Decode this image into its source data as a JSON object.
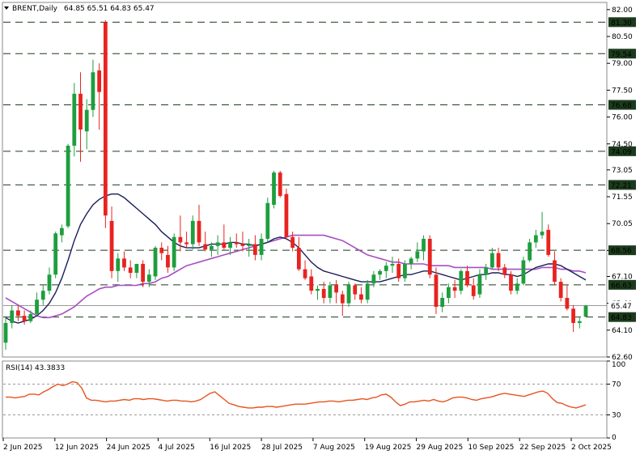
{
  "header": {
    "symbol": "BRENT,Daily",
    "ohlc": "64.85 65.51 64.83 65.47"
  },
  "indicator": {
    "label": "RSI(14) 43.3833"
  },
  "chart_data": [
    {
      "type": "candlestick",
      "title": "BRENT,Daily",
      "ylim": [
        62.6,
        82.4
      ],
      "y_ticks": [
        "82.00",
        "80.50",
        "79.00",
        "77.50",
        "76.00",
        "74.50",
        "73.05",
        "71.55",
        "70.05",
        "68.55",
        "67.10",
        "65.60",
        "64.10",
        "62.60"
      ],
      "x_ticks": [
        "2 Jun 2025",
        "12 Jun 2025",
        "24 Jun 2025",
        "4 Jul 2025",
        "16 Jul 2025",
        "28 Jul 2025",
        "7 Aug 2025",
        "19 Aug 2025",
        "29 Aug 2025",
        "10 Sep 2025",
        "22 Sep 2025",
        "2 Oct 2025"
      ],
      "levels": [
        {
          "value": 81.3,
          "label": "81.30"
        },
        {
          "value": 79.54,
          "label": "79.54"
        },
        {
          "value": 76.68,
          "label": "76.68"
        },
        {
          "value": 74.09,
          "label": "74.09"
        },
        {
          "value": 72.21,
          "label": "72.21"
        },
        {
          "value": 68.56,
          "label": "68.56"
        },
        {
          "value": 66.63,
          "label": "66.63"
        },
        {
          "value": 64.83,
          "label": "64.83"
        }
      ],
      "current_price": {
        "value": 65.47,
        "label": "65.47"
      },
      "colors": {
        "up": "#1e9e3e",
        "down": "#e8231f",
        "ma_fast": "#1a1f5a",
        "ma_slow": "#a64fc2",
        "level": "#1e3a1e"
      },
      "candles": [
        [
          63.4,
          64.8,
          63.0,
          64.5
        ],
        [
          64.5,
          65.5,
          64.2,
          65.2
        ],
        [
          65.2,
          65.5,
          64.6,
          64.9
        ],
        [
          64.9,
          65.2,
          64.4,
          64.6
        ],
        [
          64.6,
          65.2,
          64.5,
          65.0
        ],
        [
          65.0,
          66.2,
          64.9,
          65.8
        ],
        [
          65.8,
          66.6,
          65.5,
          66.3
        ],
        [
          66.3,
          67.6,
          66.1,
          67.2
        ],
        [
          67.2,
          69.6,
          67.0,
          69.5
        ],
        [
          69.4,
          70.0,
          69.0,
          69.8
        ],
        [
          69.9,
          74.5,
          69.8,
          74.4
        ],
        [
          74.4,
          77.9,
          73.8,
          77.3
        ],
        [
          77.3,
          78.5,
          73.5,
          75.3
        ],
        [
          75.2,
          77.0,
          74.2,
          76.4
        ],
        [
          76.4,
          79.2,
          76.0,
          78.5
        ],
        [
          78.6,
          79.0,
          75.3,
          77.4
        ],
        [
          81.3,
          81.4,
          69.8,
          70.5
        ],
        [
          70.2,
          71.0,
          67.0,
          67.4
        ],
        [
          67.4,
          68.4,
          66.8,
          68.1
        ],
        [
          68.1,
          68.5,
          67.4,
          67.6
        ],
        [
          67.6,
          68.0,
          67.0,
          67.3
        ],
        [
          67.3,
          67.8,
          67.0,
          67.8
        ],
        [
          67.8,
          68.0,
          66.5,
          66.8
        ],
        [
          66.8,
          67.5,
          66.5,
          67.2
        ],
        [
          67.1,
          68.8,
          66.9,
          68.7
        ],
        [
          68.7,
          69.0,
          68.0,
          68.4
        ],
        [
          68.3,
          68.8,
          67.3,
          67.6
        ],
        [
          67.6,
          69.5,
          67.4,
          69.3
        ],
        [
          69.3,
          70.5,
          68.5,
          69.0
        ],
        [
          69.0,
          69.6,
          68.7,
          68.9
        ],
        [
          68.9,
          70.5,
          68.6,
          70.2
        ],
        [
          70.2,
          71.1,
          68.8,
          69.0
        ],
        [
          68.9,
          69.6,
          68.5,
          68.6
        ],
        [
          68.6,
          69.0,
          68.2,
          68.8
        ],
        [
          68.8,
          69.4,
          68.3,
          69.0
        ],
        [
          69.0,
          70.0,
          68.6,
          68.7
        ],
        [
          68.7,
          69.3,
          68.3,
          69.0
        ],
        [
          69.0,
          69.5,
          68.7,
          68.9
        ],
        [
          68.9,
          69.6,
          68.5,
          68.8
        ],
        [
          68.8,
          69.2,
          68.2,
          68.9
        ],
        [
          68.9,
          69.4,
          68.0,
          68.3
        ],
        [
          68.3,
          69.5,
          68.0,
          69.2
        ],
        [
          69.2,
          71.5,
          69.0,
          71.2
        ],
        [
          71.1,
          73.0,
          70.9,
          72.9
        ],
        [
          72.9,
          73.0,
          71.5,
          71.6
        ],
        [
          71.7,
          72.0,
          69.2,
          69.3
        ],
        [
          69.3,
          69.6,
          68.5,
          68.7
        ],
        [
          68.7,
          69.3,
          67.4,
          67.5
        ],
        [
          67.5,
          68.0,
          66.9,
          67.0
        ],
        [
          67.1,
          67.5,
          66.1,
          66.3
        ],
        [
          66.3,
          66.6,
          65.8,
          66.4
        ],
        [
          66.4,
          66.8,
          65.6,
          65.9
        ],
        [
          65.9,
          66.8,
          65.6,
          66.6
        ],
        [
          66.6,
          66.9,
          65.6,
          66.2
        ],
        [
          66.1,
          66.3,
          64.9,
          65.6
        ],
        [
          65.6,
          66.8,
          65.4,
          66.6
        ],
        [
          66.6,
          66.7,
          65.8,
          66.1
        ],
        [
          66.1,
          66.5,
          65.6,
          65.8
        ],
        [
          65.8,
          66.9,
          65.6,
          66.7
        ],
        [
          66.7,
          67.4,
          66.5,
          67.2
        ],
        [
          67.2,
          67.5,
          66.9,
          67.4
        ],
        [
          67.4,
          67.9,
          67.0,
          67.7
        ],
        [
          67.7,
          68.2,
          67.3,
          67.8
        ],
        [
          67.8,
          68.1,
          66.8,
          67.0
        ],
        [
          67.0,
          68.0,
          66.8,
          67.8
        ],
        [
          67.8,
          68.2,
          67.5,
          68.1
        ],
        [
          68.1,
          69.0,
          67.9,
          68.5
        ],
        [
          68.5,
          69.4,
          68.0,
          69.2
        ],
        [
          69.2,
          69.4,
          67.0,
          67.2
        ],
        [
          67.2,
          67.6,
          65.0,
          65.4
        ],
        [
          65.4,
          66.2,
          65.1,
          65.9
        ],
        [
          65.9,
          66.7,
          65.6,
          66.5
        ],
        [
          66.5,
          66.9,
          65.9,
          66.3
        ],
        [
          66.3,
          67.5,
          66.1,
          67.4
        ],
        [
          67.4,
          67.7,
          66.5,
          66.6
        ],
        [
          66.6,
          67.0,
          65.8,
          66.0
        ],
        [
          66.1,
          67.5,
          65.9,
          67.2
        ],
        [
          67.2,
          67.8,
          66.9,
          67.6
        ],
        [
          67.6,
          68.7,
          67.5,
          68.4
        ],
        [
          68.4,
          68.7,
          67.4,
          67.6
        ],
        [
          67.6,
          67.8,
          67.0,
          67.2
        ],
        [
          67.2,
          67.4,
          66.1,
          66.3
        ],
        [
          66.3,
          67.0,
          66.1,
          66.7
        ],
        [
          66.7,
          68.2,
          66.6,
          68.0
        ],
        [
          68.0,
          69.2,
          67.9,
          69.0
        ],
        [
          69.0,
          69.7,
          68.7,
          69.4
        ],
        [
          69.4,
          70.7,
          69.2,
          69.6
        ],
        [
          69.7,
          70.0,
          68.2,
          68.3
        ],
        [
          68.0,
          68.5,
          66.6,
          66.8
        ],
        [
          66.8,
          67.0,
          65.7,
          65.9
        ],
        [
          65.9,
          66.6,
          65.2,
          65.3
        ],
        [
          65.3,
          65.5,
          64.0,
          64.5
        ],
        [
          64.5,
          64.8,
          64.2,
          64.6
        ],
        [
          64.85,
          65.51,
          64.83,
          65.47
        ]
      ],
      "series": [
        {
          "values": [
            64.8,
            64.6,
            64.5,
            64.6,
            64.7,
            64.9,
            65.2,
            65.6,
            66.2,
            67.0,
            68.0,
            69.1,
            70.0,
            70.6,
            71.1,
            71.4,
            71.6,
            71.7,
            71.7,
            71.5,
            71.2,
            70.9,
            70.6,
            70.3,
            70.0,
            69.6,
            69.3,
            69.0,
            68.8,
            68.7,
            68.7,
            68.7,
            68.8,
            68.9,
            68.9,
            68.9,
            69.0,
            69.0,
            68.9,
            68.9,
            68.8,
            68.9,
            69.0,
            69.2,
            69.3,
            69.2,
            69.0,
            68.7,
            68.3,
            67.9,
            67.6,
            67.4,
            67.3,
            67.2,
            67.1,
            67.0,
            66.9,
            66.8,
            66.8,
            66.8,
            66.8,
            66.9,
            67.0,
            67.1,
            67.2,
            67.2,
            67.3,
            67.4,
            67.4,
            67.3,
            67.2,
            67.1,
            67.0,
            66.9,
            67.0,
            67.1,
            67.2,
            67.2,
            67.3,
            67.3,
            67.2,
            67.2,
            67.1,
            67.2,
            67.4,
            67.6,
            67.7,
            67.8,
            67.8,
            67.7,
            67.5,
            67.3,
            67.1,
            66.9
          ]
        },
        {
          "values": [
            65.9,
            65.7,
            65.5,
            65.3,
            65.1,
            64.9,
            64.8,
            64.8,
            64.9,
            65.0,
            65.2,
            65.4,
            65.7,
            66.0,
            66.2,
            66.4,
            66.5,
            66.5,
            66.6,
            66.6,
            66.6,
            66.6,
            66.7,
            66.7,
            66.8,
            67.0,
            67.1,
            67.3,
            67.5,
            67.7,
            67.8,
            67.9,
            68.0,
            68.1,
            68.2,
            68.3,
            68.4,
            68.5,
            68.6,
            68.7,
            68.8,
            68.9,
            69.0,
            69.1,
            69.2,
            69.3,
            69.4,
            69.4,
            69.4,
            69.4,
            69.4,
            69.4,
            69.3,
            69.2,
            69.1,
            68.9,
            68.7,
            68.5,
            68.3,
            68.2,
            68.1,
            68.0,
            67.9,
            67.9,
            67.8,
            67.8,
            67.8,
            67.8,
            67.7,
            67.7,
            67.7,
            67.7,
            67.6,
            67.6,
            67.6,
            67.6,
            67.6,
            67.6,
            67.5,
            67.5,
            67.5,
            67.5,
            67.5,
            67.5,
            67.5,
            67.5,
            67.6,
            67.6,
            67.6,
            67.5,
            67.5,
            67.4,
            67.4,
            67.3
          ]
        }
      ]
    },
    {
      "type": "line",
      "title": "RSI(14) 43.3833",
      "ylim": [
        0,
        100
      ],
      "y_ticks": [
        "100",
        "70",
        "30",
        "0"
      ],
      "levels": [
        70,
        30
      ],
      "series": [
        {
          "values": [
            53,
            53,
            52,
            53,
            54,
            57,
            57,
            56,
            60,
            63,
            67,
            70,
            68,
            70,
            73,
            72,
            65,
            52,
            49,
            49,
            48,
            47,
            48,
            48,
            49,
            50,
            49,
            51,
            51,
            50,
            51,
            51,
            50,
            49,
            48,
            49,
            49,
            48,
            48,
            47,
            48,
            50,
            54,
            58,
            60,
            55,
            50,
            45,
            43,
            41,
            40,
            39,
            39,
            40,
            40,
            41,
            41,
            40,
            41,
            42,
            43,
            44,
            44,
            44,
            45,
            46,
            47,
            47,
            48,
            48,
            47,
            48,
            49,
            49,
            50,
            51,
            50,
            52,
            53,
            56,
            57,
            53,
            47,
            42,
            44,
            47,
            47,
            48,
            49,
            48,
            50,
            48,
            47,
            49,
            52,
            53,
            53,
            52,
            50,
            49,
            51,
            52,
            53,
            55,
            57,
            58,
            57,
            56,
            55,
            54,
            56,
            58,
            60,
            61,
            58,
            51,
            46,
            45,
            42,
            40,
            39,
            41,
            43
          ]
        }
      ]
    }
  ]
}
